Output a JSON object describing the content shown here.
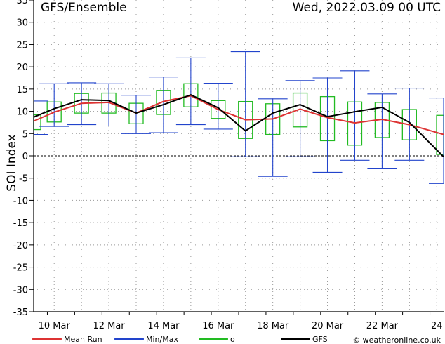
{
  "chart_data": {
    "type": "line",
    "title": "GFS/Ensemble",
    "date_label": "Wed, 2022.03.09   00 UTC",
    "ylabel": "SOI Index",
    "xlabel": "",
    "ylim": [
      -35,
      35
    ],
    "yticks": [
      35,
      30,
      25,
      20,
      15,
      10,
      5,
      0,
      -5,
      -10,
      -15,
      -20,
      -25,
      -30,
      -35
    ],
    "xlim": [
      9.25,
      24.25
    ],
    "xticks": [
      {
        "x": 10,
        "label": "10 Mar"
      },
      {
        "x": 12,
        "label": "12 Mar"
      },
      {
        "x": 14,
        "label": "14 Mar"
      },
      {
        "x": 16,
        "label": "16 Mar"
      },
      {
        "x": 18,
        "label": "18 Mar"
      },
      {
        "x": 20,
        "label": "20 Mar"
      },
      {
        "x": 22,
        "label": "22 Mar"
      },
      {
        "x": 24,
        "label": "24"
      }
    ],
    "grid": true,
    "x": [
      9.25,
      10.0,
      11.0,
      12.0,
      13.0,
      14.0,
      15.0,
      16.0,
      17.0,
      18.0,
      19.0,
      20.0,
      21.0,
      22.0,
      23.0,
      24.25
    ],
    "series": [
      {
        "name": "Mean Run",
        "color": "#dd3333",
        "values": [
          7.8,
          9.8,
          11.8,
          12.0,
          9.6,
          12.2,
          13.5,
          10.4,
          8.1,
          8.3,
          10.5,
          8.6,
          7.4,
          8.2,
          7.0,
          4.8
        ]
      },
      {
        "name": "GFS",
        "color": "#000000",
        "values": [
          8.7,
          10.6,
          12.6,
          12.4,
          9.6,
          11.5,
          13.7,
          10.8,
          5.6,
          9.6,
          11.5,
          8.8,
          9.9,
          10.9,
          7.5,
          -0.2
        ]
      }
    ],
    "minmax": {
      "name": "Min/Max",
      "color": "#2244cc",
      "min": [
        4.8,
        6.6,
        7.0,
        6.7,
        5.0,
        5.2,
        7.0,
        6.0,
        -0.2,
        -4.6,
        -0.2,
        -3.7,
        -1.0,
        -2.9,
        -1.0,
        -6.2
      ],
      "max": [
        12.3,
        16.2,
        16.4,
        16.2,
        13.6,
        17.7,
        22.0,
        16.3,
        23.4,
        12.8,
        16.9,
        17.5,
        19.1,
        13.9,
        15.2,
        13.0
      ]
    },
    "sigma": {
      "name": "σ",
      "color": "#22bb22",
      "low": [
        5.9,
        7.6,
        9.6,
        9.6,
        7.2,
        9.3,
        11.0,
        8.4,
        3.9,
        4.8,
        6.5,
        3.4,
        2.4,
        4.1,
        3.6,
        0.3
      ],
      "high": [
        9.2,
        12.1,
        14.0,
        14.1,
        11.8,
        14.7,
        16.2,
        12.4,
        12.2,
        11.7,
        14.1,
        13.3,
        12.1,
        12.0,
        10.4,
        9.1
      ]
    },
    "legend": [
      {
        "label": "Mean Run",
        "color": "#dd3333"
      },
      {
        "label": "Min/Max",
        "color": "#2244cc"
      },
      {
        "label": "σ",
        "color": "#22bb22"
      },
      {
        "label": "GFS",
        "color": "#000000"
      }
    ],
    "credit": "© weatheronline.co.uk"
  }
}
